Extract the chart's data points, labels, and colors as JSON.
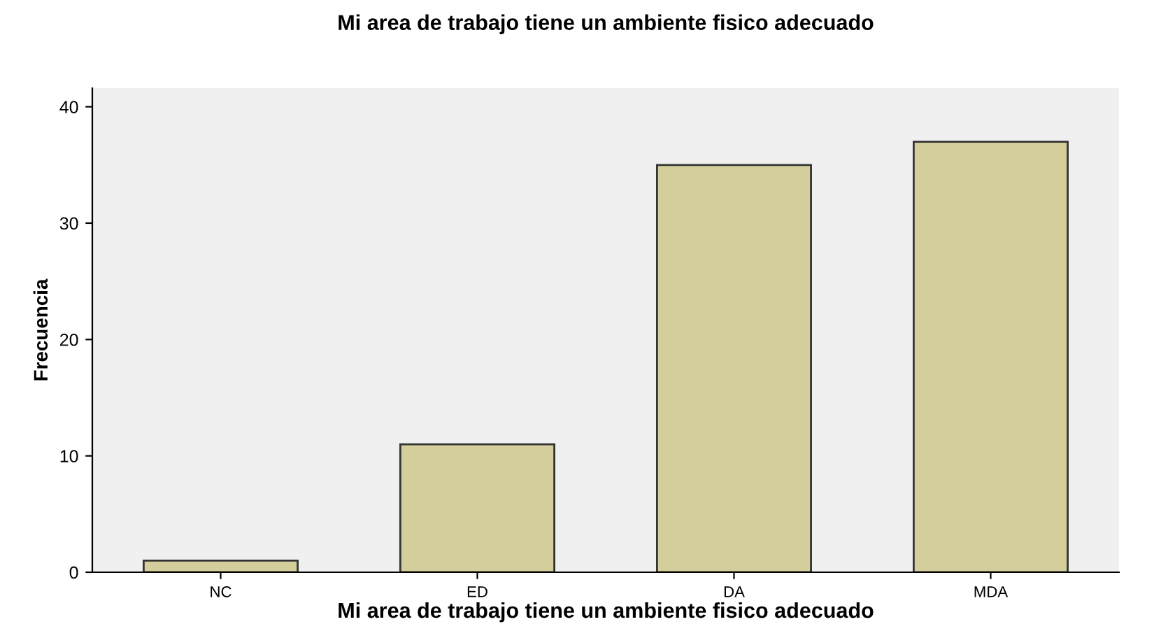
{
  "chart_data": {
    "type": "bar",
    "title": "Mi area de trabajo tiene un ambiente fisico adecuado",
    "xlabel": "Mi area de trabajo tiene un ambiente fisico adecuado",
    "ylabel": "Frecuencia",
    "categories": [
      "NC",
      "ED",
      "DA",
      "MDA"
    ],
    "values": [
      1,
      11,
      35,
      37
    ],
    "color": "#d3ce9b",
    "ylim": [
      0,
      41.6
    ],
    "yticks": [
      0,
      10,
      20,
      30,
      40
    ],
    "grid": false,
    "legend": false
  }
}
